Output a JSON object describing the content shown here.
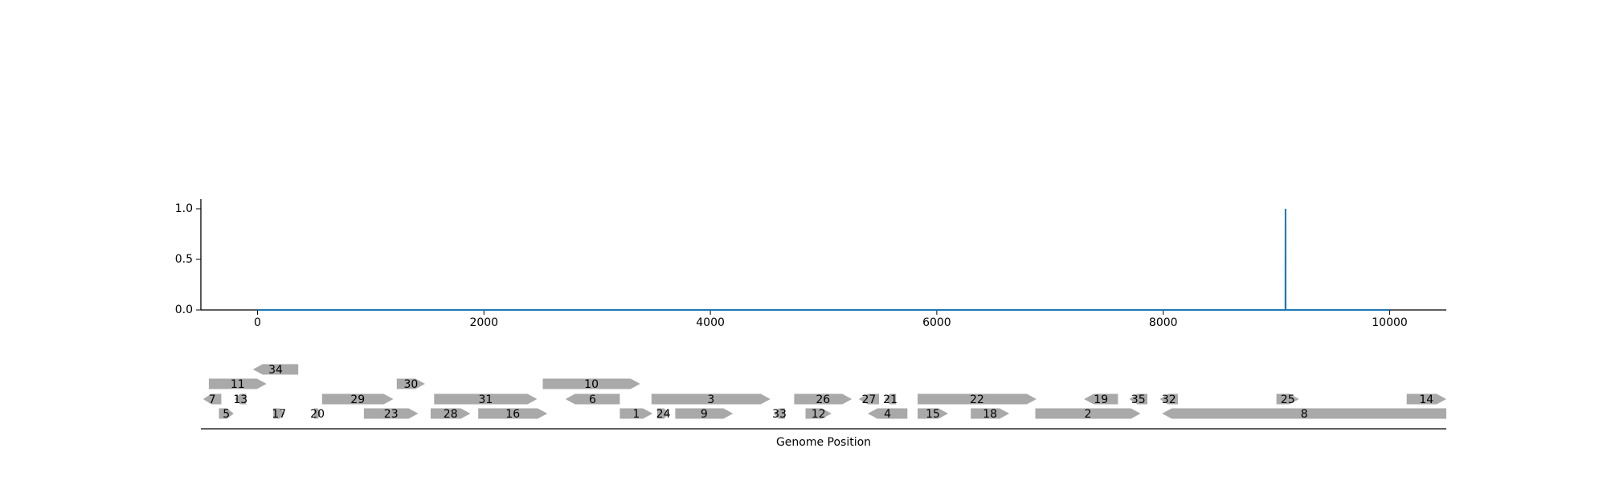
{
  "chart_data": [
    {
      "type": "line",
      "title": "",
      "xlabel": "",
      "ylabel": "",
      "xlim": [
        -500,
        10500
      ],
      "ylim": [
        0,
        1.1
      ],
      "x_ticks": [
        0,
        2000,
        4000,
        6000,
        8000,
        10000
      ],
      "x_tick_labels": [
        "0",
        "2000",
        "4000",
        "6000",
        "8000",
        "10000"
      ],
      "y_ticks": [
        0,
        0.5,
        1.0
      ],
      "y_tick_labels": [
        "0.0",
        "0.5",
        "1.0"
      ],
      "grid": false,
      "series": [
        {
          "color": "#1f77b4",
          "points": [
            [
              0,
              0
            ],
            [
              9079,
              0
            ],
            [
              9080,
              1.0
            ],
            [
              9081,
              0
            ],
            [
              10000,
              0
            ]
          ]
        }
      ]
    },
    {
      "type": "gene-map",
      "xlabel": "Genome Position",
      "xlim": [
        -500,
        10500
      ],
      "feature_color": "#a9a9a9",
      "features": [
        {
          "label": "1",
          "start": 3200,
          "end": 3490,
          "strand": 1,
          "row": 0
        },
        {
          "label": "2",
          "start": 6870,
          "end": 7800,
          "strand": 1,
          "row": 0
        },
        {
          "label": "3",
          "start": 3480,
          "end": 4530,
          "strand": 1,
          "row": 1
        },
        {
          "label": "4",
          "start": 5390,
          "end": 5740,
          "strand": -1,
          "row": 0
        },
        {
          "label": "5",
          "start": -340,
          "end": -210,
          "strand": 1,
          "row": 0
        },
        {
          "label": "6",
          "start": 2720,
          "end": 3200,
          "strand": -1,
          "row": 1
        },
        {
          "label": "7",
          "start": -480,
          "end": -320,
          "strand": -1,
          "row": 1
        },
        {
          "label": "8",
          "start": 7990,
          "end": 10500,
          "strand": -1,
          "row": 0
        },
        {
          "label": "9",
          "start": 3690,
          "end": 4200,
          "strand": 1,
          "row": 0
        },
        {
          "label": "10",
          "start": 2520,
          "end": 3380,
          "strand": 1,
          "row": 2
        },
        {
          "label": "11",
          "start": -430,
          "end": 80,
          "strand": 1,
          "row": 2
        },
        {
          "label": "12",
          "start": 4840,
          "end": 5070,
          "strand": 1,
          "row": 0
        },
        {
          "label": "13",
          "start": -200,
          "end": -100,
          "strand": -1,
          "row": 1
        },
        {
          "label": "14",
          "start": 10150,
          "end": 10500,
          "strand": 1,
          "row": 1
        },
        {
          "label": "15",
          "start": 5830,
          "end": 6100,
          "strand": 1,
          "row": 0
        },
        {
          "label": "16",
          "start": 1950,
          "end": 2560,
          "strand": 1,
          "row": 0
        },
        {
          "label": "17",
          "start": 140,
          "end": 240,
          "strand": 1,
          "row": 0
        },
        {
          "label": "18",
          "start": 6300,
          "end": 6640,
          "strand": 1,
          "row": 0
        },
        {
          "label": "19",
          "start": 7300,
          "end": 7600,
          "strand": -1,
          "row": 1
        },
        {
          "label": "20",
          "start": 500,
          "end": 560,
          "strand": 1,
          "row": 0
        },
        {
          "label": "21",
          "start": 5540,
          "end": 5640,
          "strand": -1,
          "row": 1
        },
        {
          "label": "22",
          "start": 5830,
          "end": 6880,
          "strand": 1,
          "row": 1
        },
        {
          "label": "23",
          "start": 940,
          "end": 1420,
          "strand": 1,
          "row": 0
        },
        {
          "label": "24",
          "start": 3530,
          "end": 3640,
          "strand": 1,
          "row": 0
        },
        {
          "label": "25",
          "start": 9000,
          "end": 9200,
          "strand": 1,
          "row": 1
        },
        {
          "label": "26",
          "start": 4740,
          "end": 5250,
          "strand": 1,
          "row": 1
        },
        {
          "label": "27",
          "start": 5310,
          "end": 5490,
          "strand": -1,
          "row": 1
        },
        {
          "label": "28",
          "start": 1530,
          "end": 1880,
          "strand": 1,
          "row": 0
        },
        {
          "label": "29",
          "start": 570,
          "end": 1200,
          "strand": 1,
          "row": 1
        },
        {
          "label": "30",
          "start": 1230,
          "end": 1480,
          "strand": 1,
          "row": 2
        },
        {
          "label": "31",
          "start": 1560,
          "end": 2470,
          "strand": 1,
          "row": 1
        },
        {
          "label": "32",
          "start": 7970,
          "end": 8130,
          "strand": -1,
          "row": 1
        },
        {
          "label": "33",
          "start": 4560,
          "end": 4660,
          "strand": -1,
          "row": 0
        },
        {
          "label": "34",
          "start": -40,
          "end": 360,
          "strand": -1,
          "row": 3
        },
        {
          "label": "35",
          "start": 7700,
          "end": 7860,
          "strand": -1,
          "row": 1
        }
      ]
    }
  ]
}
